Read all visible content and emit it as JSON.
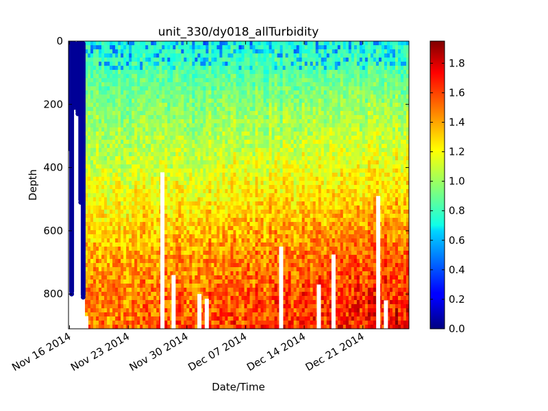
{
  "chart_data": {
    "type": "heatmap",
    "title": "unit_330/dy018_allTurbidity",
    "xlabel": "Date/Time",
    "ylabel": "Depth",
    "x_type": "date",
    "xlim": [
      "2014-11-15T21:00",
      "2014-12-26T12:00"
    ],
    "x_ticks": [
      {
        "value": "2014-11-16",
        "label": "Nov 16 2014"
      },
      {
        "value": "2014-11-23",
        "label": "Nov 23 2014"
      },
      {
        "value": "2014-11-30",
        "label": "Nov 30 2014"
      },
      {
        "value": "2014-12-07",
        "label": "Dec 07 2014"
      },
      {
        "value": "2014-12-14",
        "label": "Dec 14 2014"
      },
      {
        "value": "2014-12-21",
        "label": "Dec 21 2014"
      }
    ],
    "ylim": [
      910,
      0
    ],
    "y_inverted": true,
    "y_ticks": [
      0,
      200,
      400,
      600,
      800
    ],
    "colorbar": {
      "colormap": "jet",
      "range": [
        0.0,
        1.95
      ],
      "ticks": [
        "0.0",
        "0.2",
        "0.4",
        "0.6",
        "0.8",
        "1.0",
        "1.2",
        "1.4",
        "1.6",
        "1.8"
      ]
    },
    "depth_profile": {
      "depths": [
        0,
        100,
        200,
        300,
        400,
        500,
        600,
        700,
        800,
        910
      ],
      "approx_value": [
        0.75,
        0.85,
        0.95,
        1.02,
        1.1,
        1.2,
        1.3,
        1.4,
        1.45,
        1.5
      ]
    },
    "trend": {
      "dates": [
        "2014-11-18",
        "2014-12-26"
      ],
      "deep_value": [
        1.25,
        1.5
      ]
    },
    "near_zero_profiles": [
      {
        "date": "2014-11-16T00:00",
        "top": 0,
        "bottom": 340
      },
      {
        "date": "2014-11-16T06:00",
        "top": 0,
        "bottom": 800
      },
      {
        "date": "2014-11-16T14:00",
        "top": 0,
        "bottom": 210
      },
      {
        "date": "2014-11-17T00:00",
        "top": 0,
        "bottom": 230
      },
      {
        "date": "2014-11-17T08:00",
        "top": 0,
        "bottom": 510
      },
      {
        "date": "2014-11-17T15:00",
        "top": 0,
        "bottom": 810
      }
    ],
    "data_gaps": [
      {
        "date": "2014-11-16T10:00",
        "top": 220,
        "bottom": 910
      },
      {
        "date": "2014-11-16T20:00",
        "top": 340,
        "bottom": 910
      },
      {
        "date": "2014-11-17T12:00",
        "top": 510,
        "bottom": 910
      },
      {
        "date": "2014-11-18T00:00",
        "top": 870,
        "bottom": 910
      },
      {
        "date": "2014-11-27T02:00",
        "top": 415,
        "bottom": 910
      },
      {
        "date": "2014-11-28T10:00",
        "top": 740,
        "bottom": 910
      },
      {
        "date": "2014-12-01T12:00",
        "top": 800,
        "bottom": 910
      },
      {
        "date": "2014-12-02T09:00",
        "top": 815,
        "bottom": 910
      },
      {
        "date": "2014-12-11T06:00",
        "top": 650,
        "bottom": 910
      },
      {
        "date": "2014-12-15T18:00",
        "top": 770,
        "bottom": 910
      },
      {
        "date": "2014-12-17T12:00",
        "top": 675,
        "bottom": 910
      },
      {
        "date": "2014-12-22T20:00",
        "top": 490,
        "bottom": 910
      },
      {
        "date": "2014-12-23T18:00",
        "top": 820,
        "bottom": 910
      }
    ]
  }
}
